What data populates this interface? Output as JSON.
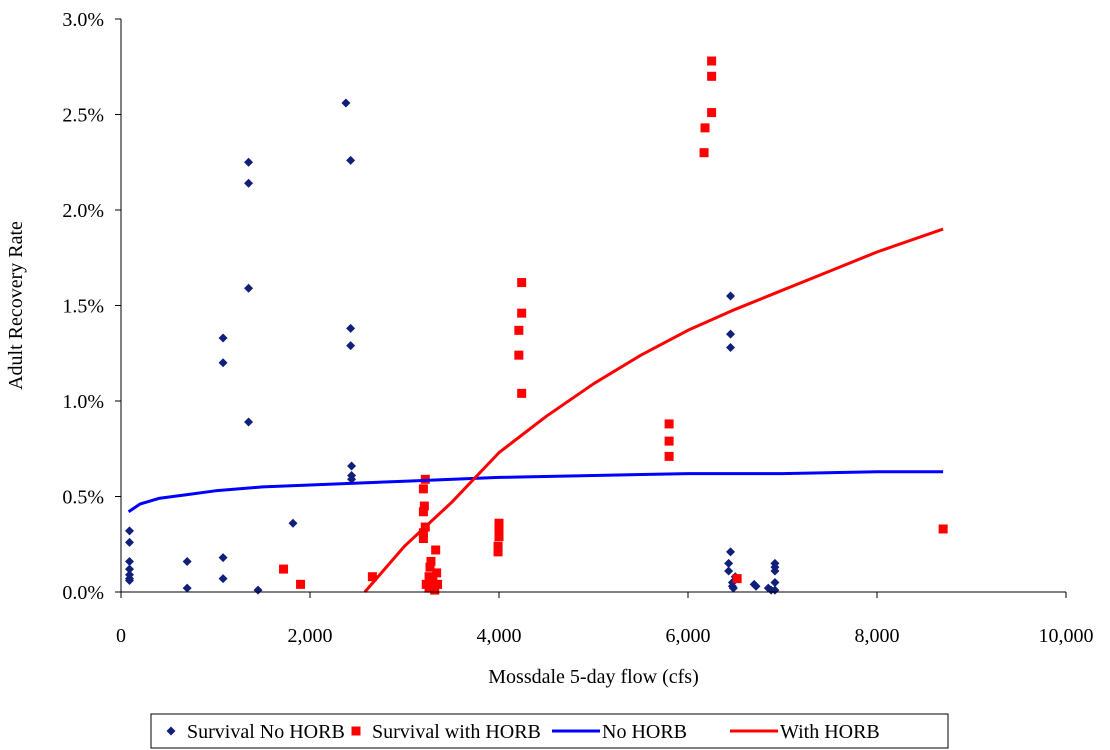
{
  "chart_data": {
    "type": "scatter",
    "title": "",
    "xlabel": "Mossdale 5-day flow (cfs)",
    "ylabel": "Adult Recovery Rate",
    "xlim": [
      0,
      10000
    ],
    "ylim": [
      0,
      0.03
    ],
    "x_ticks": [
      0,
      2000,
      4000,
      6000,
      8000,
      10000
    ],
    "x_tick_labels": [
      "0",
      "2,000",
      "4,000",
      "6,000",
      "8,000",
      "10,000"
    ],
    "y_ticks": [
      0,
      0.005,
      0.01,
      0.015,
      0.02,
      0.025,
      0.03
    ],
    "y_tick_labels": [
      "0.0%",
      "0.5%",
      "1.0%",
      "1.5%",
      "2.0%",
      "2.5%",
      "3.0%"
    ],
    "grid": false,
    "legend_position": "bottom",
    "series": [
      {
        "name": "Survival No HORB",
        "kind": "scatter",
        "marker": "diamond",
        "color": "#10207a",
        "points": [
          [
            90,
            0.0032
          ],
          [
            90,
            0.0026
          ],
          [
            90,
            0.0016
          ],
          [
            90,
            0.0012
          ],
          [
            90,
            0.0009
          ],
          [
            90,
            0.0007
          ],
          [
            90,
            0.0006
          ],
          [
            700,
            0.0016
          ],
          [
            700,
            0.0002
          ],
          [
            1080,
            0.0133
          ],
          [
            1080,
            0.012
          ],
          [
            1080,
            0.0018
          ],
          [
            1080,
            0.0007
          ],
          [
            1350,
            0.0225
          ],
          [
            1350,
            0.0214
          ],
          [
            1350,
            0.0159
          ],
          [
            1350,
            0.0089
          ],
          [
            1450,
            0.0001
          ],
          [
            1820,
            0.0036
          ],
          [
            2380,
            0.0256
          ],
          [
            2430,
            0.0226
          ],
          [
            2430,
            0.0138
          ],
          [
            2430,
            0.0129
          ],
          [
            2440,
            0.0066
          ],
          [
            2440,
            0.0061
          ],
          [
            2440,
            0.0059
          ],
          [
            6450,
            0.0155
          ],
          [
            6450,
            0.0135
          ],
          [
            6450,
            0.0128
          ],
          [
            6450,
            0.0021
          ],
          [
            6430,
            0.0015
          ],
          [
            6430,
            0.0011
          ],
          [
            6470,
            0.0005
          ],
          [
            6470,
            0.0003
          ],
          [
            6480,
            0.0002
          ],
          [
            6500,
            0.0008
          ],
          [
            6700,
            0.0004
          ],
          [
            6720,
            0.0003
          ],
          [
            6850,
            0.0002
          ],
          [
            6880,
            0.0001
          ],
          [
            6920,
            0.0015
          ],
          [
            6920,
            0.0013
          ],
          [
            6920,
            0.0011
          ],
          [
            6920,
            0.0005
          ],
          [
            6920,
            0.0001
          ]
        ]
      },
      {
        "name": "Survival with HORB",
        "kind": "scatter",
        "marker": "square",
        "color": "#ff0000",
        "points": [
          [
            1720,
            0.0012
          ],
          [
            1900,
            0.0004
          ],
          [
            2660,
            0.0008
          ],
          [
            3220,
            0.0059
          ],
          [
            3200,
            0.0054
          ],
          [
            3210,
            0.0045
          ],
          [
            3200,
            0.0042
          ],
          [
            3220,
            0.0034
          ],
          [
            3200,
            0.0031
          ],
          [
            3200,
            0.0028
          ],
          [
            3230,
            0.0004
          ],
          [
            3260,
            0.0002
          ],
          [
            3260,
            0.0008
          ],
          [
            3270,
            0.0013
          ],
          [
            3280,
            0.0016
          ],
          [
            3300,
            0.0006
          ],
          [
            3310,
            0.0003
          ],
          [
            3320,
            0.0001
          ],
          [
            3330,
            0.0022
          ],
          [
            3340,
            0.001
          ],
          [
            3350,
            0.0004
          ],
          [
            4000,
            0.0036
          ],
          [
            4000,
            0.0033
          ],
          [
            4000,
            0.0029
          ],
          [
            3990,
            0.0024
          ],
          [
            3990,
            0.0021
          ],
          [
            4210,
            0.0137
          ],
          [
            4210,
            0.0124
          ],
          [
            4240,
            0.0162
          ],
          [
            4240,
            0.0146
          ],
          [
            4240,
            0.0104
          ],
          [
            5800,
            0.0088
          ],
          [
            5800,
            0.0079
          ],
          [
            5800,
            0.0071
          ],
          [
            6180,
            0.0243
          ],
          [
            6170,
            0.023
          ],
          [
            6250,
            0.0278
          ],
          [
            6250,
            0.027
          ],
          [
            6250,
            0.0251
          ],
          [
            6520,
            0.0007
          ],
          [
            8700,
            0.0033
          ]
        ]
      },
      {
        "name": "No HORB",
        "kind": "line",
        "color": "#0000ff",
        "points": [
          [
            80,
            0.0042
          ],
          [
            200,
            0.0046
          ],
          [
            400,
            0.0049
          ],
          [
            700,
            0.0051
          ],
          [
            1000,
            0.0053
          ],
          [
            1500,
            0.0055
          ],
          [
            2000,
            0.0056
          ],
          [
            3000,
            0.0058
          ],
          [
            4000,
            0.006
          ],
          [
            5000,
            0.0061
          ],
          [
            6000,
            0.0062
          ],
          [
            7000,
            0.0062
          ],
          [
            8000,
            0.0063
          ],
          [
            8700,
            0.0063
          ]
        ]
      },
      {
        "name": "With HORB",
        "kind": "line",
        "color": "#ff0000",
        "points": [
          [
            2580,
            0.0
          ],
          [
            3000,
            0.0024
          ],
          [
            3500,
            0.0047
          ],
          [
            4000,
            0.0073
          ],
          [
            4500,
            0.0092
          ],
          [
            5000,
            0.0109
          ],
          [
            5500,
            0.0124
          ],
          [
            6000,
            0.0137
          ],
          [
            6500,
            0.0148
          ],
          [
            7000,
            0.0158
          ],
          [
            7500,
            0.0168
          ],
          [
            8000,
            0.0178
          ],
          [
            8700,
            0.019
          ]
        ]
      }
    ]
  }
}
